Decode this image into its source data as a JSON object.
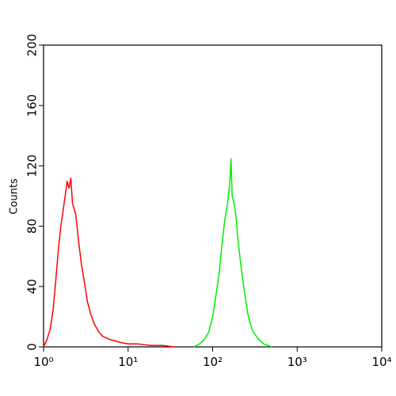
{
  "chart_data": {
    "type": "line",
    "y_label": "Counts",
    "xscale": "log",
    "xlim": [
      1,
      10000
    ],
    "xticks": [
      {
        "value": 1,
        "label": "10⁰"
      },
      {
        "value": 10,
        "label": "10¹"
      },
      {
        "value": 100,
        "label": "10²"
      },
      {
        "value": 1000,
        "label": "10³"
      },
      {
        "value": 10000,
        "label": "10⁴"
      }
    ],
    "ylim": [
      0,
      200
    ],
    "yticks": [
      0,
      40,
      80,
      120,
      160,
      200
    ],
    "series": [
      {
        "color": "#ff0000",
        "x": [
          1.0,
          1.1,
          1.2,
          1.3,
          1.4,
          1.5,
          1.6,
          1.7,
          1.8,
          1.9,
          2.0,
          2.1,
          2.2,
          2.4,
          2.6,
          2.8,
          3.0,
          3.3,
          3.6,
          4.0,
          4.5,
          5,
          6,
          7,
          8,
          10,
          13,
          18,
          25,
          35
        ],
        "values": [
          0,
          5,
          12,
          25,
          45,
          65,
          80,
          90,
          100,
          110,
          105,
          112,
          95,
          88,
          70,
          55,
          45,
          30,
          22,
          15,
          10,
          7,
          5,
          4,
          3,
          2,
          2,
          1,
          1,
          0
        ]
      },
      {
        "color": "#00ee00",
        "x": [
          60,
          70,
          80,
          90,
          100,
          110,
          120,
          130,
          140,
          150,
          160,
          165,
          170,
          180,
          190,
          200,
          220,
          240,
          260,
          280,
          300,
          350,
          400,
          450,
          500
        ],
        "values": [
          0,
          2,
          5,
          10,
          20,
          35,
          50,
          70,
          85,
          95,
          110,
          125,
          100,
          95,
          85,
          70,
          50,
          35,
          22,
          15,
          10,
          5,
          2,
          1,
          0
        ]
      }
    ]
  }
}
